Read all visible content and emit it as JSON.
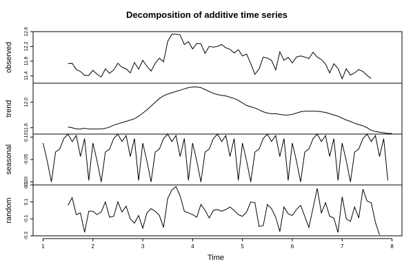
{
  "chart_data": {
    "type": "line",
    "title": "Decomposition of additive time series",
    "xlabel": "Time",
    "xlim": [
      0.8,
      8.2
    ],
    "xticks": [
      1,
      2,
      3,
      4,
      5,
      6,
      7,
      8
    ],
    "frequency": 12,
    "panels": [
      {
        "name": "observed",
        "ylabel": "observed",
        "ylim": [
          11.2,
          12.6
        ],
        "yticks": [
          "11.4",
          "11.8",
          "12.2",
          "12.6"
        ],
        "start": 1.5,
        "values": [
          11.73,
          11.74,
          11.57,
          11.52,
          11.41,
          11.41,
          11.55,
          11.44,
          11.37,
          11.59,
          11.47,
          11.56,
          11.74,
          11.63,
          11.59,
          11.48,
          11.76,
          11.58,
          11.82,
          11.66,
          11.53,
          11.74,
          11.88,
          11.78,
          12.33,
          12.53,
          12.53,
          12.51,
          12.25,
          12.33,
          12.13,
          12.28,
          12.27,
          12.01,
          12.2,
          12.18,
          12.2,
          12.25,
          12.16,
          12.12,
          12.02,
          12.11,
          11.94,
          11.99,
          11.73,
          11.44,
          11.59,
          11.91,
          11.88,
          11.82,
          11.56,
          12.05,
          11.82,
          11.9,
          11.75,
          11.91,
          11.94,
          11.91,
          11.87,
          12.04,
          11.91,
          11.84,
          11.72,
          11.48,
          11.73,
          11.6,
          11.32,
          11.59,
          11.42,
          11.48,
          11.57,
          11.52,
          11.41,
          11.33
        ]
      },
      {
        "name": "trend",
        "ylabel": "trend",
        "ylim": [
          11.5,
          12.3
        ],
        "yticks": [
          "11.6",
          "12.0"
        ],
        "start": 1.5,
        "values": [
          11.61,
          11.6,
          11.58,
          11.58,
          11.59,
          11.58,
          11.58,
          11.58,
          11.58,
          11.59,
          11.61,
          11.64,
          11.66,
          11.68,
          11.7,
          11.72,
          11.74,
          11.78,
          11.83,
          11.88,
          11.94,
          12.0,
          12.06,
          12.1,
          12.13,
          12.15,
          12.17,
          12.19,
          12.21,
          12.23,
          12.24,
          12.24,
          12.23,
          12.2,
          12.17,
          12.14,
          12.12,
          12.11,
          12.1,
          12.08,
          12.06,
          12.03,
          11.99,
          11.95,
          11.93,
          11.91,
          11.88,
          11.85,
          11.83,
          11.82,
          11.82,
          11.81,
          11.8,
          11.8,
          11.81,
          11.83,
          11.85,
          11.86,
          11.86,
          11.86,
          11.86,
          11.85,
          11.84,
          11.82,
          11.8,
          11.78,
          11.75,
          11.72,
          11.7,
          11.67,
          11.65,
          11.63,
          11.6,
          11.56,
          11.54,
          11.53,
          11.52,
          11.51,
          11.51
        ]
      },
      {
        "name": "seasonal",
        "ylabel": "seasonal",
        "ylim": [
          -0.22,
          0.12
        ],
        "yticks": [
          "-0.20",
          "-0.05",
          "0.10"
        ],
        "start": 1.0,
        "values": [
          0.06,
          -0.06,
          -0.2,
          0.0,
          0.02,
          0.09,
          0.12,
          0.07,
          0.11,
          -0.03,
          0.09,
          -0.19,
          0.06,
          -0.06,
          -0.2,
          0.0,
          0.02,
          0.09,
          0.12,
          0.07,
          0.11,
          -0.03,
          0.09,
          -0.19,
          0.06,
          -0.06,
          -0.2,
          0.0,
          0.02,
          0.09,
          0.12,
          0.07,
          0.11,
          -0.03,
          0.09,
          -0.19,
          0.06,
          -0.06,
          -0.2,
          0.0,
          0.02,
          0.09,
          0.12,
          0.07,
          0.11,
          -0.03,
          0.09,
          -0.19,
          0.06,
          -0.06,
          -0.2,
          0.0,
          0.02,
          0.09,
          0.12,
          0.07,
          0.11,
          -0.03,
          0.09,
          -0.19,
          0.06,
          -0.06,
          -0.2,
          0.0,
          0.02,
          0.09,
          0.12,
          0.07,
          0.11,
          -0.03,
          0.09,
          -0.19,
          0.06,
          -0.06,
          -0.2,
          0.0,
          0.02,
          0.09,
          0.12,
          0.07,
          0.11,
          -0.03,
          0.09,
          -0.19
        ]
      },
      {
        "name": "random",
        "ylabel": "random",
        "ylim": [
          -0.3,
          0.3
        ],
        "yticks": [
          "-0.3",
          "-0.1",
          "0.1",
          "0.3"
        ],
        "start": 1.5,
        "values": [
          0.06,
          0.15,
          -0.05,
          -0.03,
          -0.26,
          -0.01,
          -0.01,
          -0.05,
          -0.02,
          0.1,
          -0.08,
          -0.07,
          0.1,
          -0.02,
          0.05,
          -0.1,
          -0.15,
          -0.06,
          -0.21,
          -0.03,
          0.02,
          -0.01,
          -0.06,
          -0.2,
          0.14,
          0.24,
          0.28,
          0.17,
          -0.01,
          -0.03,
          -0.05,
          -0.08,
          0.07,
          0.0,
          -0.09,
          0.0,
          0.01,
          -0.01,
          0.01,
          0.04,
          0.0,
          -0.05,
          -0.07,
          -0.02,
          0.1,
          0.09,
          -0.19,
          -0.18,
          0.07,
          0.02,
          -0.08,
          -0.25,
          0.04,
          -0.04,
          -0.06,
          0.01,
          0.06,
          -0.07,
          -0.2,
          0.03,
          0.26,
          -0.03,
          0.09,
          -0.07,
          -0.09,
          -0.26,
          0.16,
          -0.1,
          -0.13,
          0.04,
          -0.09,
          0.25,
          0.11,
          0.09,
          -0.14,
          -0.29
        ]
      }
    ]
  }
}
